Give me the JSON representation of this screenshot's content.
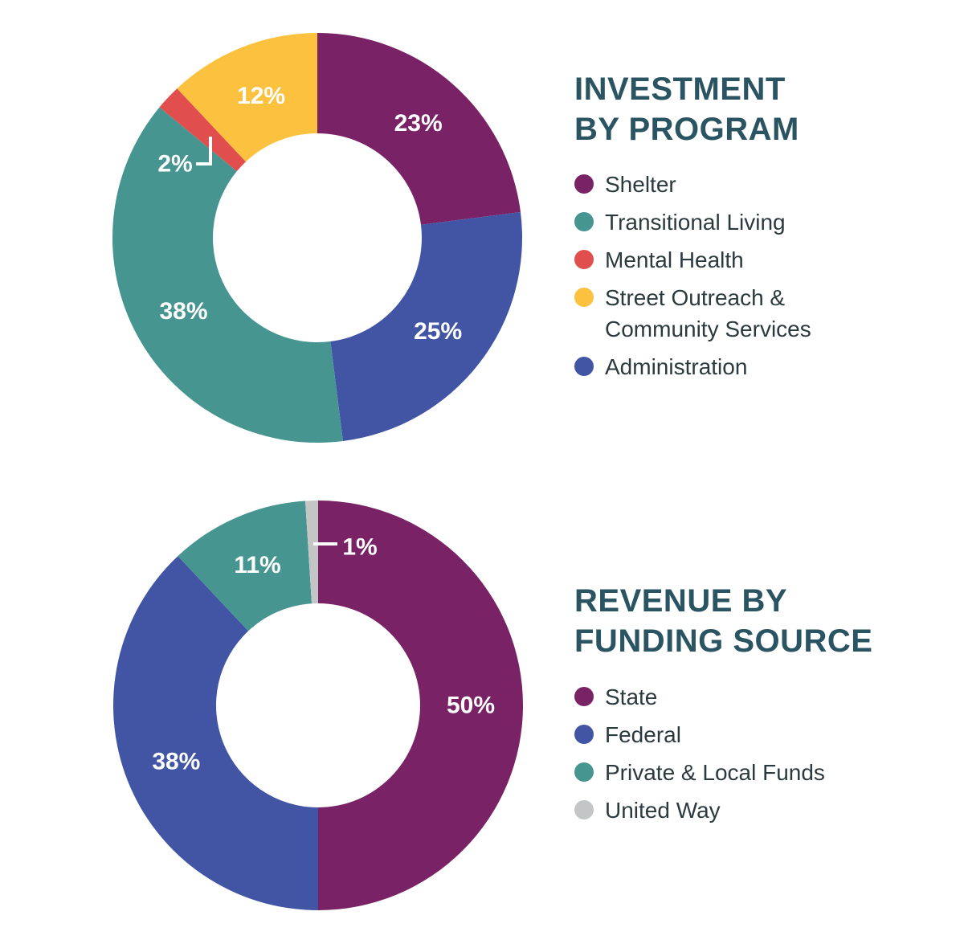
{
  "chart_data": [
    {
      "type": "pie",
      "title_lines": [
        "INVESTMENT",
        "BY PROGRAM"
      ],
      "slices": [
        {
          "name": "Shelter",
          "value": 23,
          "label": "23%",
          "color": "#7a2266"
        },
        {
          "name": "Administration",
          "value": 25,
          "label": "25%",
          "color": "#4255a5"
        },
        {
          "name": "Transitional Living",
          "value": 38,
          "label": "38%",
          "color": "#479591"
        },
        {
          "name": "Mental Health",
          "value": 2,
          "label": "2%",
          "color": "#e04f4e"
        },
        {
          "name": "Street Outreach & Community Services",
          "value": 12,
          "label": "12%",
          "color": "#fcc23f"
        }
      ],
      "legend": [
        {
          "label": "Shelter",
          "color": "#7a2266"
        },
        {
          "label": "Transitional Living",
          "color": "#479591"
        },
        {
          "label": "Mental Health",
          "color": "#e04f4e"
        },
        {
          "label": "Street Outreach &\nCommunity Services",
          "color": "#fcc23f"
        },
        {
          "label": "Administration",
          "color": "#4255a5"
        }
      ]
    },
    {
      "type": "pie",
      "title_lines": [
        "REVENUE BY",
        "FUNDING SOURCE"
      ],
      "slices": [
        {
          "name": "State",
          "value": 50,
          "label": "50%",
          "color": "#7a2266"
        },
        {
          "name": "Federal",
          "value": 38,
          "label": "38%",
          "color": "#4255a5"
        },
        {
          "name": "Private & Local Funds",
          "value": 11,
          "label": "11%",
          "color": "#479591"
        },
        {
          "name": "United Way",
          "value": 1,
          "label": "1%",
          "color": "#c4c5c6"
        }
      ],
      "legend": [
        {
          "label": "State",
          "color": "#7a2266"
        },
        {
          "label": "Federal",
          "color": "#4255a5"
        },
        {
          "label": "Private & Local Funds",
          "color": "#479591"
        },
        {
          "label": "United Way",
          "color": "#c4c5c6"
        }
      ]
    }
  ]
}
